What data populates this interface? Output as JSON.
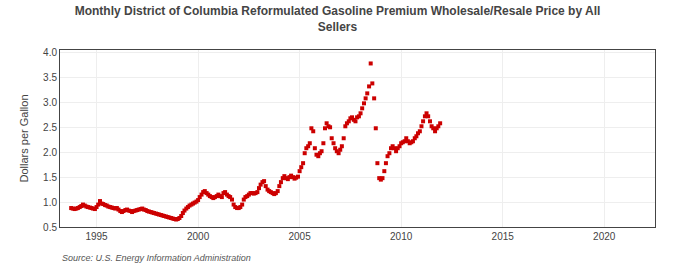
{
  "chart_data": {
    "type": "scatter",
    "title": "Monthly District of Columbia Reformulated Gasoline Premium Wholesale/Resale Price by All\nSellers",
    "ylabel": "Dollars per Gallon",
    "annotations": [
      "Source: U.S. Energy Information Administration"
    ],
    "color": "#cc0000",
    "marker": "square",
    "grid": true,
    "xlim": [
      1993.2,
      2022.5
    ],
    "ylim": [
      0.5,
      4.05
    ],
    "xticks": [
      1995,
      2000,
      2005,
      2010,
      2015,
      2020
    ],
    "yticks": [
      0.5,
      {
        "value": 1.0,
        "label": "1.0"
      },
      1.5,
      {
        "value": 2.0,
        "label": "2.0"
      },
      2.5,
      {
        "value": 3.0,
        "label": "3.0"
      },
      3.5,
      {
        "value": 4.0,
        "label": "4.0"
      }
    ],
    "x": [
      1993.75,
      1993.83,
      1993.92,
      1994.0,
      1994.08,
      1994.17,
      1994.25,
      1994.33,
      1994.42,
      1994.5,
      1994.58,
      1994.67,
      1994.75,
      1994.83,
      1994.92,
      1995.0,
      1995.08,
      1995.17,
      1995.25,
      1995.33,
      1995.42,
      1995.5,
      1995.58,
      1995.67,
      1995.75,
      1995.83,
      1995.92,
      1996.0,
      1996.08,
      1996.17,
      1996.25,
      1996.33,
      1996.42,
      1996.5,
      1996.58,
      1996.67,
      1996.75,
      1996.83,
      1996.92,
      1997.0,
      1997.08,
      1997.17,
      1997.25,
      1997.33,
      1997.42,
      1997.5,
      1997.58,
      1997.67,
      1997.75,
      1997.83,
      1997.92,
      1998.0,
      1998.08,
      1998.17,
      1998.25,
      1998.33,
      1998.42,
      1998.5,
      1998.58,
      1998.67,
      1998.75,
      1998.83,
      1998.92,
      1999.0,
      1999.08,
      1999.17,
      1999.25,
      1999.33,
      1999.42,
      1999.5,
      1999.58,
      1999.67,
      1999.75,
      1999.83,
      1999.92,
      2000.0,
      2000.08,
      2000.17,
      2000.25,
      2000.33,
      2000.42,
      2000.5,
      2000.58,
      2000.67,
      2000.75,
      2000.83,
      2000.92,
      2001.0,
      2001.08,
      2001.17,
      2001.25,
      2001.33,
      2001.42,
      2001.5,
      2001.58,
      2001.67,
      2001.75,
      2001.83,
      2001.92,
      2002.0,
      2002.08,
      2002.17,
      2002.25,
      2002.33,
      2002.42,
      2002.5,
      2002.58,
      2002.67,
      2002.75,
      2002.83,
      2002.92,
      2003.0,
      2003.08,
      2003.17,
      2003.25,
      2003.33,
      2003.42,
      2003.5,
      2003.58,
      2003.67,
      2003.75,
      2003.83,
      2003.92,
      2004.0,
      2004.08,
      2004.17,
      2004.25,
      2004.33,
      2004.42,
      2004.5,
      2004.58,
      2004.67,
      2004.75,
      2004.83,
      2004.92,
      2005.0,
      2005.08,
      2005.17,
      2005.25,
      2005.33,
      2005.42,
      2005.5,
      2005.58,
      2005.67,
      2005.75,
      2005.83,
      2005.92,
      2006.0,
      2006.08,
      2006.17,
      2006.25,
      2006.33,
      2006.42,
      2006.5,
      2006.58,
      2006.67,
      2006.75,
      2006.83,
      2006.92,
      2007.0,
      2007.08,
      2007.17,
      2007.25,
      2007.33,
      2007.42,
      2007.5,
      2007.58,
      2007.67,
      2007.75,
      2007.83,
      2007.92,
      2008.0,
      2008.08,
      2008.17,
      2008.25,
      2008.33,
      2008.42,
      2008.5,
      2008.58,
      2008.67,
      2008.75,
      2008.83,
      2008.92,
      2009.0,
      2009.08,
      2009.17,
      2009.25,
      2009.33,
      2009.42,
      2009.5,
      2009.58,
      2009.67,
      2009.75,
      2009.83,
      2009.92,
      2010.0,
      2010.08,
      2010.17,
      2010.25,
      2010.33,
      2010.42,
      2010.5,
      2010.58,
      2010.67,
      2010.75,
      2010.83,
      2010.92,
      2011.0,
      2011.08,
      2011.17,
      2011.25,
      2011.33,
      2011.42,
      2011.5,
      2011.58,
      2011.67,
      2011.75,
      2011.83,
      2011.92
    ],
    "values": [
      0.88,
      0.87,
      0.86,
      0.87,
      0.88,
      0.9,
      0.92,
      0.95,
      0.93,
      0.91,
      0.9,
      0.89,
      0.88,
      0.87,
      0.86,
      0.9,
      0.95,
      1.02,
      0.97,
      0.96,
      0.94,
      0.93,
      0.91,
      0.9,
      0.89,
      0.88,
      0.87,
      0.88,
      0.85,
      0.82,
      0.8,
      0.82,
      0.84,
      0.85,
      0.83,
      0.82,
      0.8,
      0.82,
      0.83,
      0.84,
      0.85,
      0.86,
      0.87,
      0.85,
      0.84,
      0.82,
      0.81,
      0.8,
      0.79,
      0.78,
      0.77,
      0.76,
      0.75,
      0.74,
      0.73,
      0.72,
      0.71,
      0.7,
      0.69,
      0.68,
      0.67,
      0.66,
      0.65,
      0.66,
      0.68,
      0.72,
      0.78,
      0.83,
      0.87,
      0.9,
      0.93,
      0.95,
      0.97,
      0.99,
      1.01,
      1.04,
      1.1,
      1.15,
      1.2,
      1.22,
      1.18,
      1.15,
      1.12,
      1.1,
      1.08,
      1.1,
      1.12,
      1.15,
      1.12,
      1.1,
      1.18,
      1.2,
      1.15,
      1.12,
      1.1,
      1.05,
      0.95,
      0.9,
      0.88,
      0.88,
      0.9,
      0.95,
      1.05,
      1.1,
      1.12,
      1.15,
      1.18,
      1.18,
      1.17,
      1.18,
      1.2,
      1.28,
      1.35,
      1.4,
      1.42,
      1.32,
      1.25,
      1.22,
      1.2,
      1.18,
      1.16,
      1.18,
      1.22,
      1.32,
      1.4,
      1.48,
      1.52,
      1.48,
      1.46,
      1.5,
      1.53,
      1.5,
      1.47,
      1.49,
      1.51,
      1.62,
      1.7,
      1.78,
      1.98,
      2.08,
      2.12,
      2.18,
      2.48,
      2.42,
      2.08,
      1.95,
      1.92,
      1.98,
      2.02,
      2.18,
      2.48,
      2.58,
      2.52,
      2.5,
      2.28,
      2.18,
      2.08,
      2.02,
      1.98,
      2.05,
      2.12,
      2.28,
      2.52,
      2.58,
      2.62,
      2.68,
      2.7,
      2.65,
      2.62,
      2.7,
      2.72,
      2.78,
      2.88,
      2.98,
      3.08,
      3.18,
      3.32,
      3.78,
      3.38,
      3.08,
      2.48,
      1.78,
      1.48,
      1.45,
      1.48,
      1.62,
      1.78,
      1.92,
      1.98,
      2.08,
      2.12,
      2.08,
      2.02,
      2.08,
      2.12,
      2.18,
      2.2,
      2.22,
      2.28,
      2.22,
      2.18,
      2.2,
      2.22,
      2.28,
      2.32,
      2.38,
      2.42,
      2.52,
      2.62,
      2.72,
      2.78,
      2.72,
      2.62,
      2.52,
      2.48,
      2.42,
      2.48,
      2.52,
      2.58
    ]
  }
}
